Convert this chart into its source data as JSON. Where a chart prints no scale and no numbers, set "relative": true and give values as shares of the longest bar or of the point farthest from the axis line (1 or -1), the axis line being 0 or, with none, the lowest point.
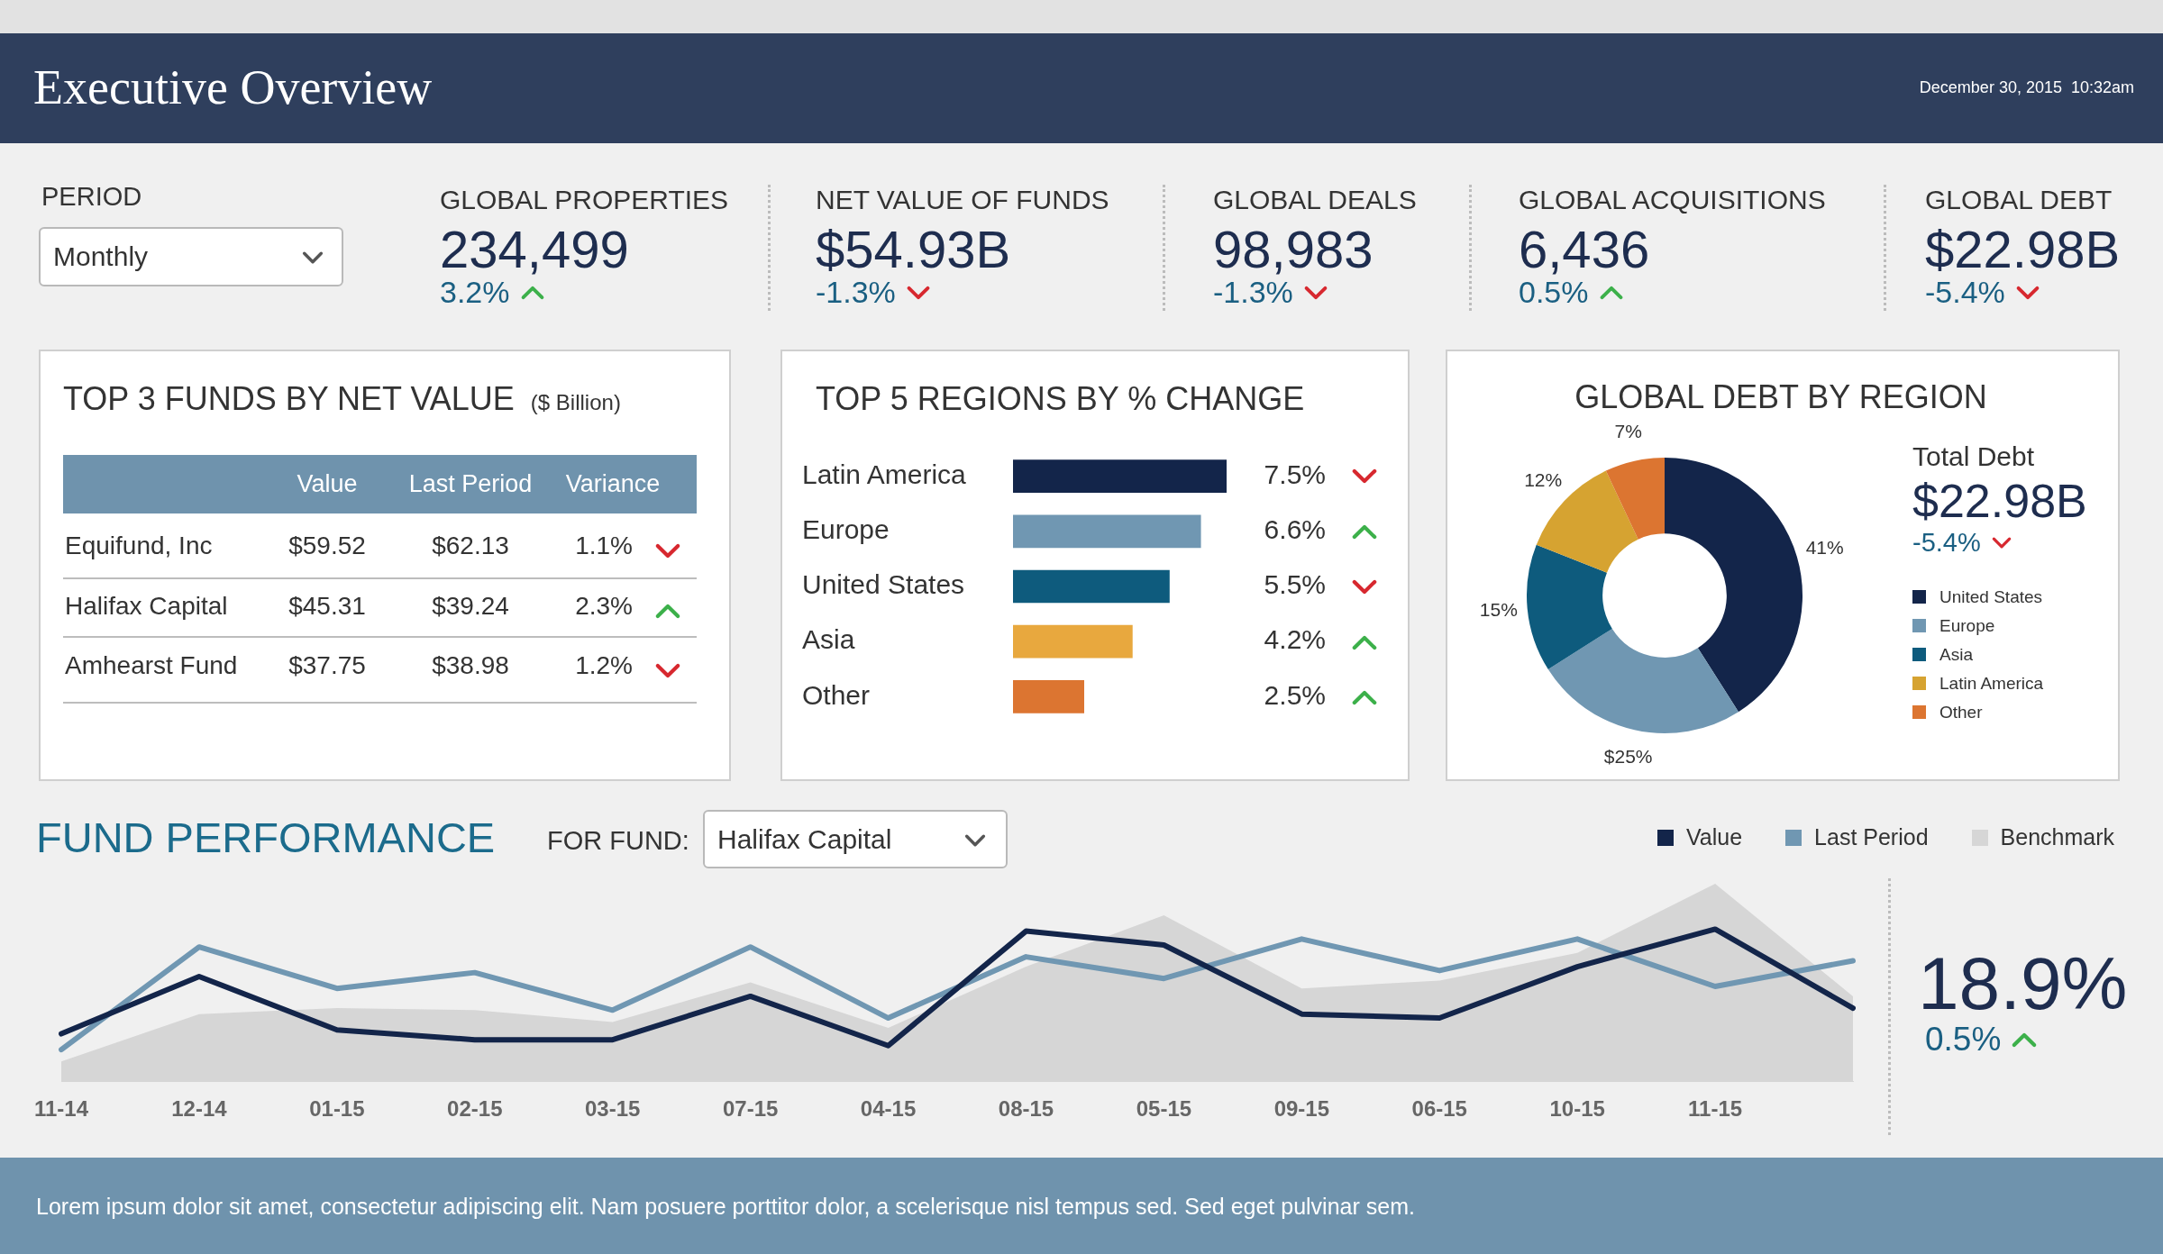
{
  "chart_data": [
    {
      "type": "other",
      "title": "Executive Overview",
      "annotations": [
        "December 30, 2015  10:32am",
        "PERIOD",
        "Monthly",
        "GLOBAL PROPERTIES",
        "234,499",
        "3.2%",
        "NET VALUE OF FUNDS",
        "$54.93B",
        "-1.3%",
        "GLOBAL DEALS",
        "98,983",
        "-1.3%",
        "GLOBAL ACQUISITIONS",
        "6,436",
        "0.5%",
        "GLOBAL DEBT",
        "$22.98B",
        "-5.4%",
        "Lorem ipsum dolor sit amet, consectetur adipiscing elit. Nam posuere porttitor dolor, a scelerisque nisl tempus sed. Sed eget pulvinar sem."
      ]
    },
    {
      "type": "other",
      "title": "TOP 3 FUNDS BY NET VALUE",
      "subtitle": "($ Billion)",
      "annotations": [
        "Value",
        "Last Period",
        "Variance",
        "Equifund, Inc",
        "$59.52",
        "$62.13",
        "1.1%",
        "Halifax Capital",
        "$45.31",
        "$39.24",
        "2.3%",
        "Amhearst Fund",
        "$37.75",
        "$38.98",
        "1.2%"
      ]
    },
    {
      "type": "bar",
      "title": "TOP 5 REGIONS BY % CHANGE",
      "orientation": "horizontal",
      "tick_labels": "y",
      "categories": [
        "Latin America",
        "Europe",
        "United States",
        "Asia",
        "Other"
      ],
      "values": [
        7.5,
        6.6,
        5.5,
        4.2,
        2.5
      ],
      "colors": [
        "#13254a",
        "#7097b2",
        "#0e5b7d",
        "#e8a83e",
        "#dc7531"
      ],
      "value_labels": [
        "7.5%",
        "6.6%",
        "5.5%",
        "4.2%",
        "2.5%"
      ]
    },
    {
      "type": "donut",
      "title": "GLOBAL DEBT BY REGION",
      "categories": [
        "United States",
        "Europe",
        "Asia",
        "Latin America",
        "Other"
      ],
      "values": [
        41,
        25,
        15,
        12,
        7
      ],
      "colors": [
        "#13254a",
        "#7097b2",
        "#0e5b7d",
        "#d6a331",
        "#dc7531"
      ],
      "value_labels": [
        "41%",
        "$25%",
        "15%",
        "12%",
        "7%"
      ],
      "legend": "right",
      "annotations": [
        "Total Debt",
        "$22.98B",
        "-5.4%"
      ]
    },
    {
      "type": "line",
      "title": "FUND PERFORMANCE",
      "relative": true,
      "legend": "top right",
      "tick_labels": "x",
      "marker": "none",
      "categories": [
        "11-14",
        "12-14",
        "01-15",
        "02-15",
        "03-15",
        "07-15",
        "04-15",
        "08-15",
        "05-15",
        "09-15",
        "06-15",
        "10-15",
        "11-15",
        null
      ],
      "series": [
        {
          "name": "Value",
          "type": "line",
          "color": "#13254a",
          "values": [
            0.24,
            0.53,
            0.26,
            0.21,
            0.21,
            0.43,
            0.18,
            0.76,
            0.69,
            0.34,
            0.32,
            0.58,
            0.77,
            0.37
          ]
        },
        {
          "name": "Last Period",
          "type": "line",
          "color": "#7097b2",
          "values": [
            0.16,
            0.68,
            0.47,
            0.55,
            0.36,
            0.68,
            0.32,
            0.63,
            0.52,
            0.72,
            0.56,
            0.72,
            0.48,
            0.61
          ]
        },
        {
          "name": "Benchmark",
          "type": "area",
          "color": "#d6d6d6",
          "values": [
            0.1,
            0.34,
            0.37,
            0.36,
            0.3,
            0.5,
            0.27,
            0.58,
            0.84,
            0.47,
            0.51,
            0.65,
            1.0,
            0.43
          ]
        }
      ],
      "annotations": [
        "FOR FUND:",
        "Halifax Capital",
        "18.9%",
        "0.5%"
      ]
    }
  ]
}
